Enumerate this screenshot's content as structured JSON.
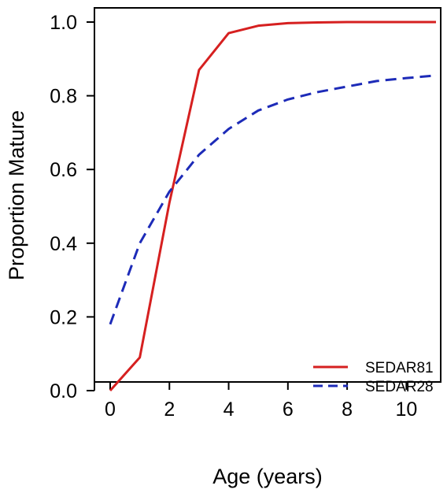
{
  "chart_data": {
    "type": "line",
    "title": "",
    "xlabel": "Age (years)",
    "ylabel": "Proportion Mature",
    "xlim": [
      0,
      11
    ],
    "ylim": [
      0,
      1
    ],
    "x_ticks": [
      0,
      2,
      4,
      6,
      8,
      10
    ],
    "x_tick_labels": [
      "0",
      "2",
      "4",
      "6",
      "8",
      "10"
    ],
    "y_ticks": [
      0.0,
      0.2,
      0.4,
      0.6,
      0.8,
      1.0
    ],
    "y_tick_labels": [
      "0.0",
      "0.2",
      "0.4",
      "0.6",
      "0.8",
      "1.0"
    ],
    "grid": false,
    "legend": {
      "position": "bottom-right",
      "entries": [
        {
          "label": "SEDAR81",
          "color": "#d62020",
          "style": "solid"
        },
        {
          "label": "SEDAR28",
          "color": "#1d2bb8",
          "style": "dashed"
        }
      ]
    },
    "series": [
      {
        "name": "SEDAR81",
        "color": "#d62020",
        "style": "solid",
        "x": [
          0,
          1,
          2,
          3,
          4,
          5,
          6,
          7,
          8,
          9,
          10,
          11
        ],
        "values": [
          0.0,
          0.09,
          0.51,
          0.87,
          0.97,
          0.99,
          0.997,
          0.999,
          1.0,
          1.0,
          1.0,
          1.0
        ]
      },
      {
        "name": "SEDAR28",
        "color": "#1d2bb8",
        "style": "dashed",
        "x": [
          0,
          1,
          2,
          3,
          4,
          5,
          6,
          7,
          8,
          9,
          10,
          11
        ],
        "values": [
          0.18,
          0.4,
          0.54,
          0.64,
          0.71,
          0.76,
          0.79,
          0.81,
          0.825,
          0.84,
          0.848,
          0.855
        ]
      }
    ]
  }
}
